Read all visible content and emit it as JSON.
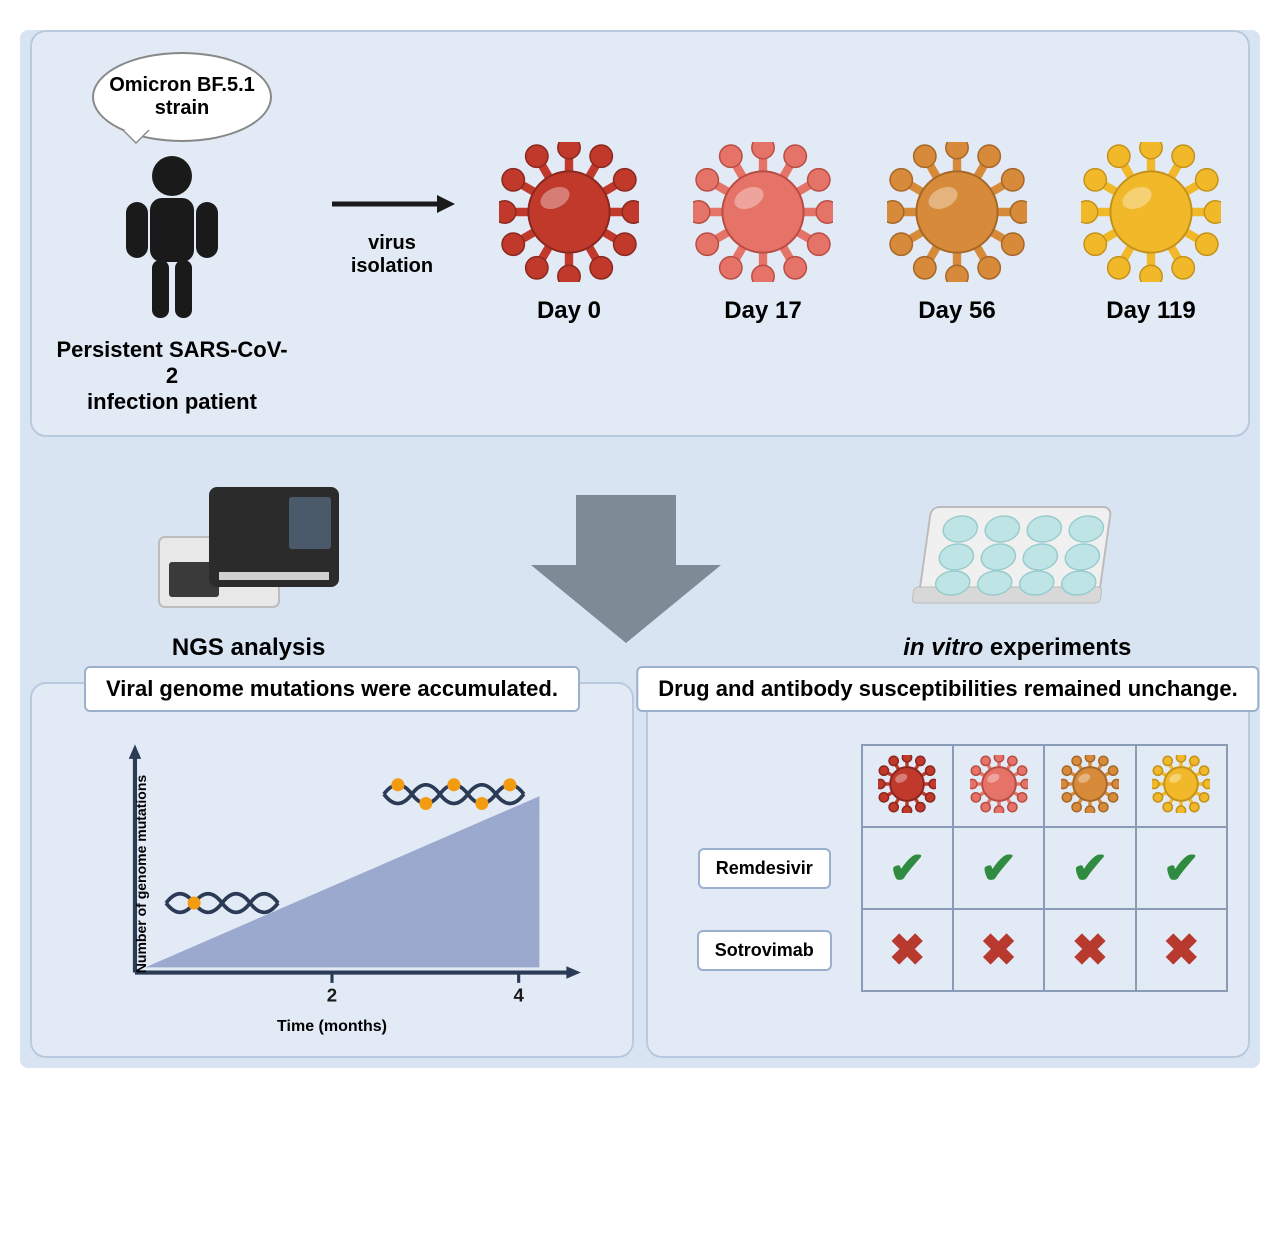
{
  "top": {
    "bubble": "Omicron BF.5.1 strain",
    "patient_label_1": "Persistent SARS-CoV-2",
    "patient_label_2": "infection patient",
    "arrow_label_1": "virus",
    "arrow_label_2": "isolation",
    "viruses": [
      {
        "day": "Day 0",
        "fill": "#c0392b",
        "stroke": "#8a2820"
      },
      {
        "day": "Day 17",
        "fill": "#e57368",
        "stroke": "#b84d44"
      },
      {
        "day": "Day 56",
        "fill": "#d68a3a",
        "stroke": "#a66828"
      },
      {
        "day": "Day 119",
        "fill": "#f1b92a",
        "stroke": "#c4921a"
      }
    ]
  },
  "middle": {
    "ngs_label": "NGS analysis",
    "invitro_label_prefix": "in vitro",
    "invitro_label_suffix": " experiments",
    "arrow_color": "#7f8a97"
  },
  "bottom_left": {
    "title": "Viral genome mutations were accumulated.",
    "y_label": "Number of genome mutations",
    "x_label": "Time (months)",
    "x_ticks": [
      "2",
      "4"
    ],
    "triangle_fill": "#9aa9cd",
    "axis_color": "#2b3a55"
  },
  "bottom_right": {
    "title": "Drug and antibody susceptibilities remained unchange.",
    "drugs": [
      "Remdesivir",
      "Sotrovimab"
    ],
    "virus_colors": [
      {
        "fill": "#c0392b",
        "stroke": "#8a2820"
      },
      {
        "fill": "#e57368",
        "stroke": "#b84d44"
      },
      {
        "fill": "#d68a3a",
        "stroke": "#a66828"
      },
      {
        "fill": "#f1b92a",
        "stroke": "#c4921a"
      }
    ],
    "results": [
      [
        "check",
        "check",
        "check",
        "check"
      ],
      [
        "cross",
        "cross",
        "cross",
        "cross"
      ]
    ]
  }
}
